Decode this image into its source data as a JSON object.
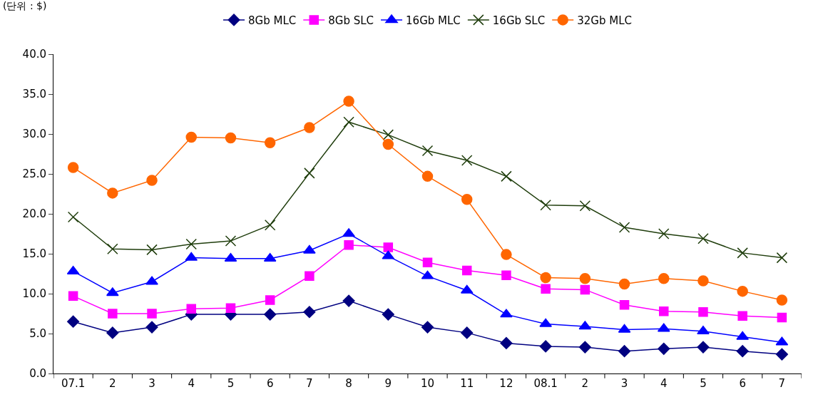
{
  "chart_data": {
    "type": "line",
    "annotations": [
      "(단위 : $)"
    ],
    "categories": [
      "07.1",
      "2",
      "3",
      "4",
      "5",
      "6",
      "7",
      "8",
      "9",
      "10",
      "11",
      "12",
      "08.1",
      "2",
      "3",
      "4",
      "5",
      "6",
      "7"
    ],
    "ylim": [
      0,
      40
    ],
    "yticks": [
      {
        "value": 0,
        "label": "0.0"
      },
      {
        "value": 5,
        "label": "5.0"
      },
      {
        "value": 10,
        "label": "10.0"
      },
      {
        "value": 15,
        "label": "15.0"
      },
      {
        "value": 20,
        "label": "20.0"
      },
      {
        "value": 25,
        "label": "25.0"
      },
      {
        "value": 30,
        "label": "30.0"
      },
      {
        "value": 35,
        "label": "35.0"
      },
      {
        "value": 40,
        "label": "40.0"
      }
    ],
    "legend": "top",
    "line_style": "solid",
    "series": [
      {
        "name": "8Gb MLC",
        "color": "#000080",
        "marker": "diamond",
        "values": [
          6.5,
          5.1,
          5.8,
          7.4,
          7.4,
          7.4,
          7.7,
          9.1,
          7.4,
          5.8,
          5.1,
          3.8,
          3.4,
          3.3,
          2.8,
          3.1,
          3.3,
          2.8,
          2.4
        ]
      },
      {
        "name": "8Gb SLC",
        "color": "#ff00ff",
        "marker": "square",
        "values": [
          9.7,
          7.5,
          7.5,
          8.1,
          8.2,
          9.2,
          12.2,
          16.1,
          15.8,
          13.9,
          12.9,
          12.3,
          10.6,
          10.5,
          8.6,
          7.8,
          7.7,
          7.2,
          7.0
        ]
      },
      {
        "name": "16Gb MLC",
        "color": "#0000ff",
        "marker": "triangle",
        "values": [
          12.8,
          10.1,
          11.5,
          14.5,
          14.4,
          14.4,
          15.4,
          17.5,
          14.7,
          12.2,
          10.4,
          7.4,
          6.2,
          5.9,
          5.5,
          5.6,
          5.3,
          4.6,
          3.9
        ]
      },
      {
        "name": "16Gb SLC",
        "color": "#1f3d0c",
        "marker": "cross",
        "values": [
          19.6,
          15.6,
          15.5,
          16.2,
          16.6,
          18.6,
          25.1,
          31.5,
          29.9,
          27.9,
          26.7,
          24.7,
          21.1,
          21.0,
          18.3,
          17.5,
          16.9,
          15.1,
          14.5
        ]
      },
      {
        "name": "32Gb MLC",
        "color": "#ff6600",
        "marker": "circle",
        "values": [
          25.8,
          22.6,
          24.2,
          29.6,
          29.5,
          28.9,
          30.8,
          34.1,
          28.7,
          24.7,
          21.8,
          14.9,
          12.0,
          11.9,
          11.2,
          11.9,
          11.6,
          10.3,
          9.2
        ]
      }
    ]
  }
}
